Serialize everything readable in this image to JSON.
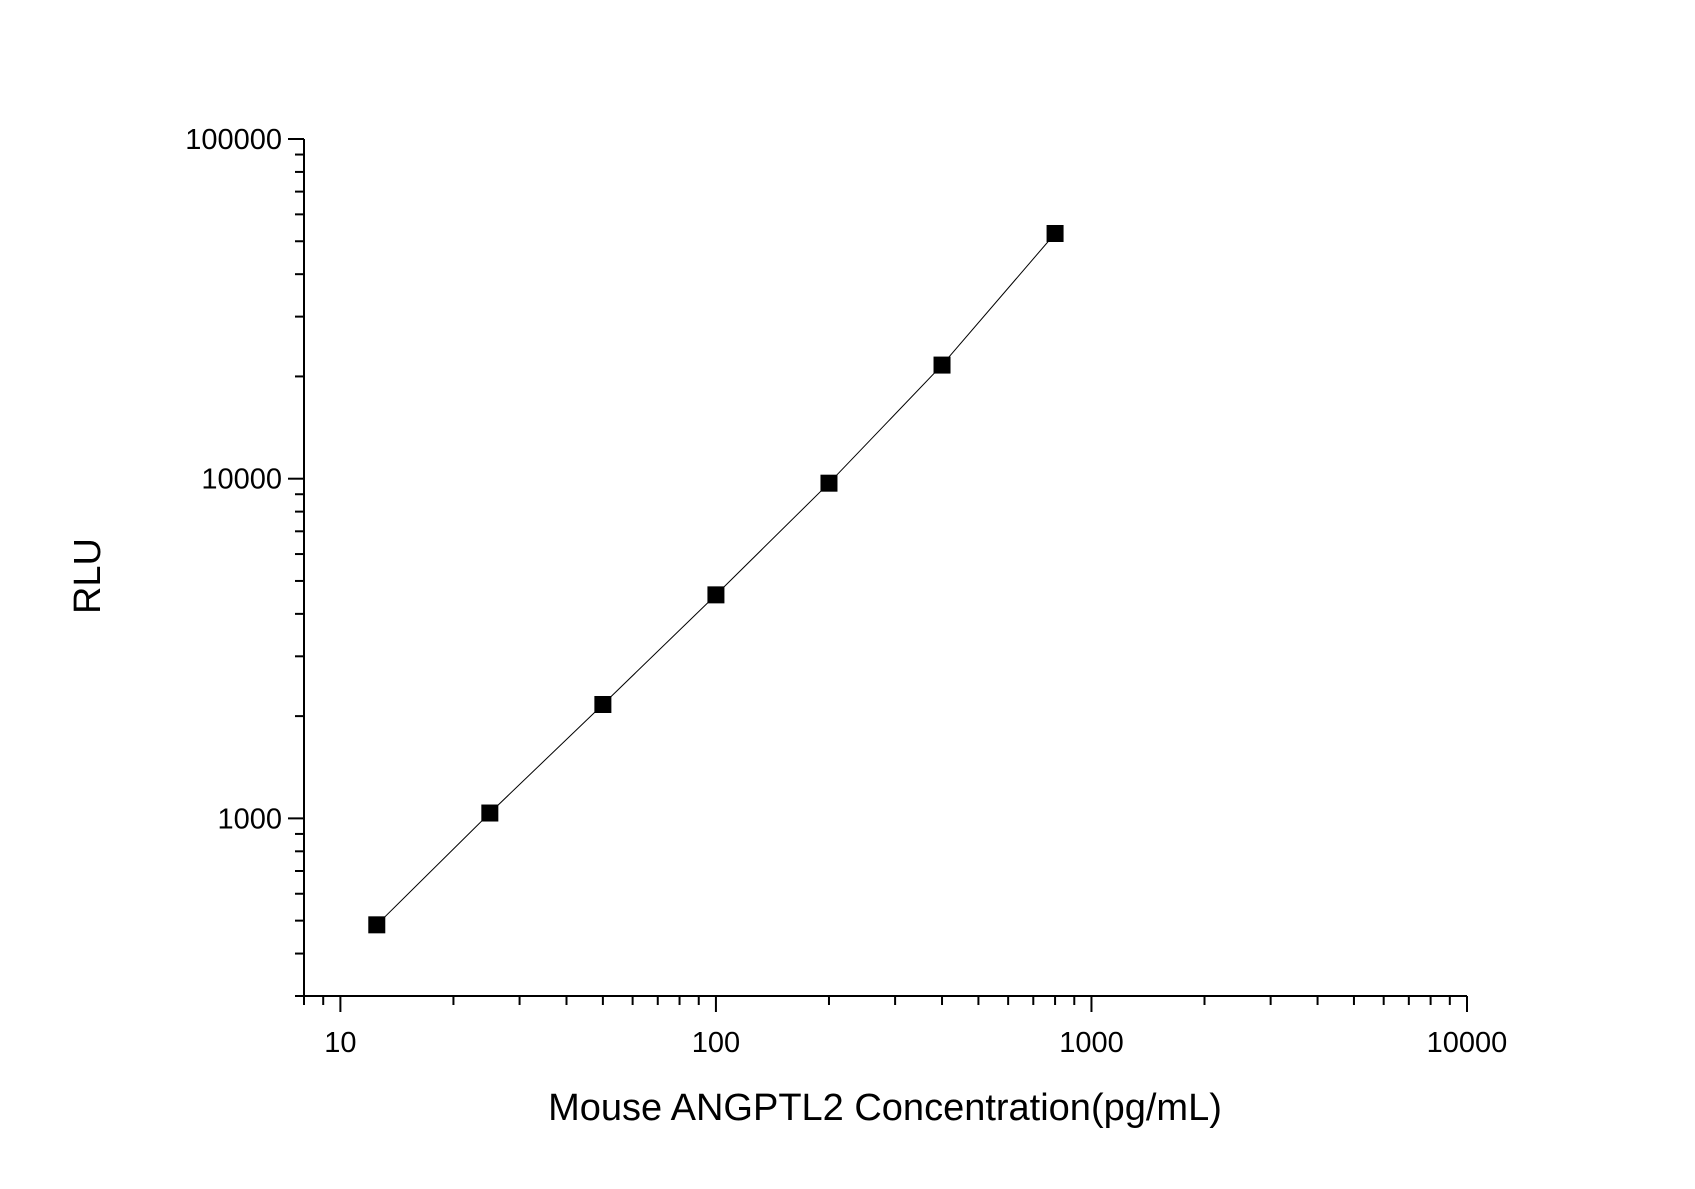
{
  "chart_data": {
    "type": "scatter",
    "x_label": "Mouse ANGPTL2 Concentration(pg/mL)",
    "y_label": "RLU",
    "x_scale": "log",
    "y_scale": "log",
    "xlim": [
      8,
      10000
    ],
    "ylim": [
      300,
      100000
    ],
    "xticks": [
      10,
      100,
      1000,
      10000
    ],
    "yticks": [
      1000,
      10000,
      100000
    ],
    "series": [
      {
        "color": "#000000",
        "x": [
          12.5,
          25,
          50,
          100,
          200,
          400,
          800
        ],
        "values": [
          486,
          1037,
          2164,
          4550,
          9700,
          21600,
          52700
        ]
      }
    ]
  }
}
